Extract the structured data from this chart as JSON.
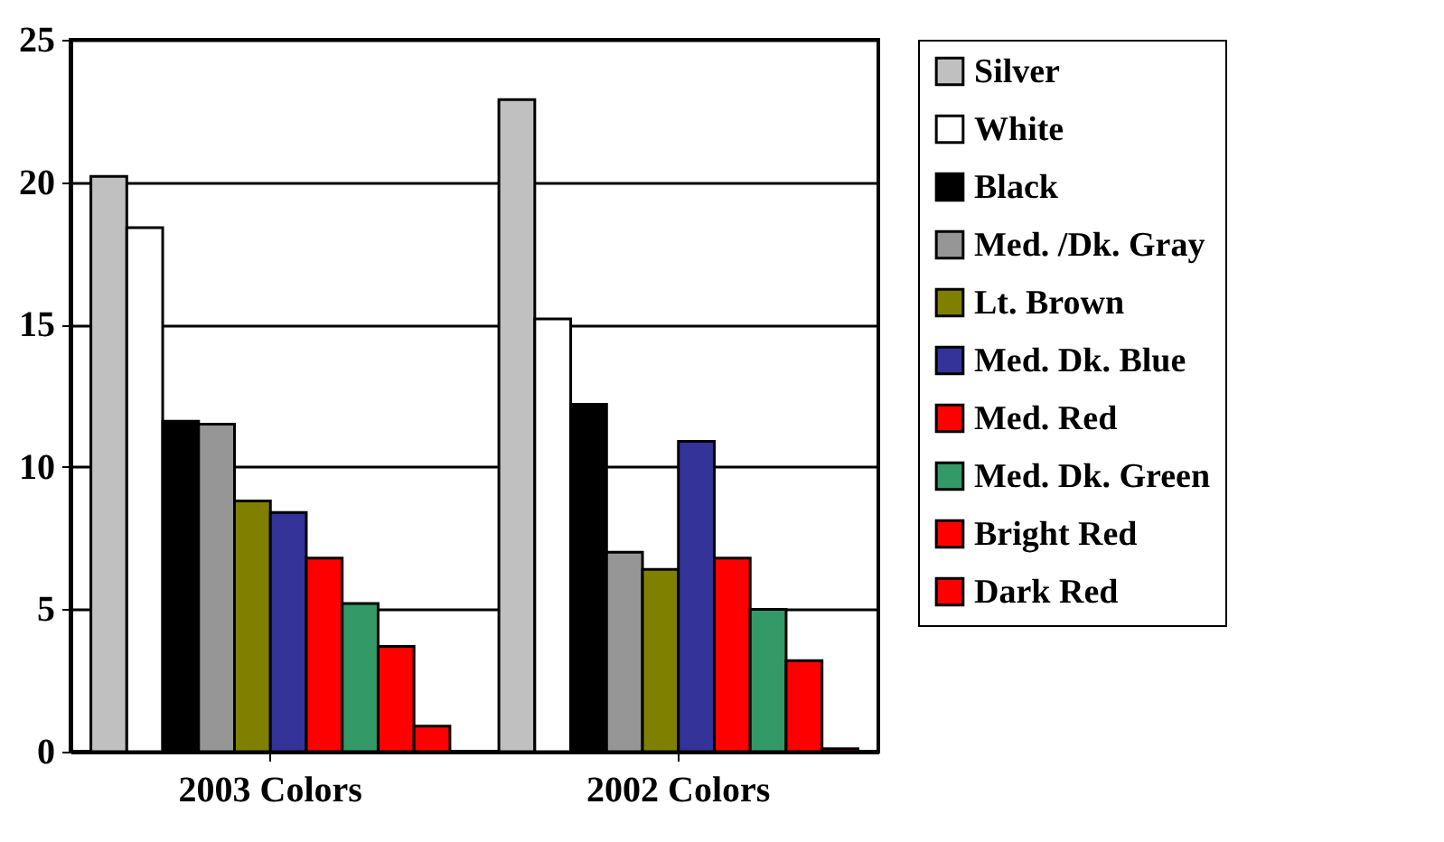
{
  "chart_data": {
    "type": "bar",
    "categories": [
      "2003 Colors",
      "2002 Colors"
    ],
    "series": [
      {
        "name": "Silver",
        "color": "#c0c0c0",
        "values": [
          20.2,
          22.9
        ]
      },
      {
        "name": "White",
        "color": "#ffffff",
        "values": [
          18.4,
          15.2
        ]
      },
      {
        "name": "Black",
        "color": "#000000",
        "values": [
          11.6,
          12.2
        ]
      },
      {
        "name": "Med. /Dk. Gray",
        "color": "#969696",
        "values": [
          11.5,
          7.0
        ]
      },
      {
        "name": "Lt. Brown",
        "color": "#808000",
        "values": [
          8.8,
          6.4
        ]
      },
      {
        "name": "Med. Dk. Blue",
        "color": "#333399",
        "values": [
          8.4,
          10.9
        ]
      },
      {
        "name": "Med. Red",
        "color": "#ff0000",
        "values": [
          6.8,
          6.8
        ]
      },
      {
        "name": "Med. Dk. Green",
        "color": "#339966",
        "values": [
          5.2,
          5.0
        ]
      },
      {
        "name": "Bright Red",
        "color": "#ff0000",
        "values": [
          3.7,
          3.2
        ]
      },
      {
        "name": "Dark Red",
        "color": "#ff0000",
        "values": [
          0.9,
          0.1
        ]
      }
    ],
    "ylim": [
      0,
      25
    ],
    "yticks": [
      0,
      5,
      10,
      15,
      20,
      25
    ],
    "grid": "y",
    "legend": "right"
  }
}
